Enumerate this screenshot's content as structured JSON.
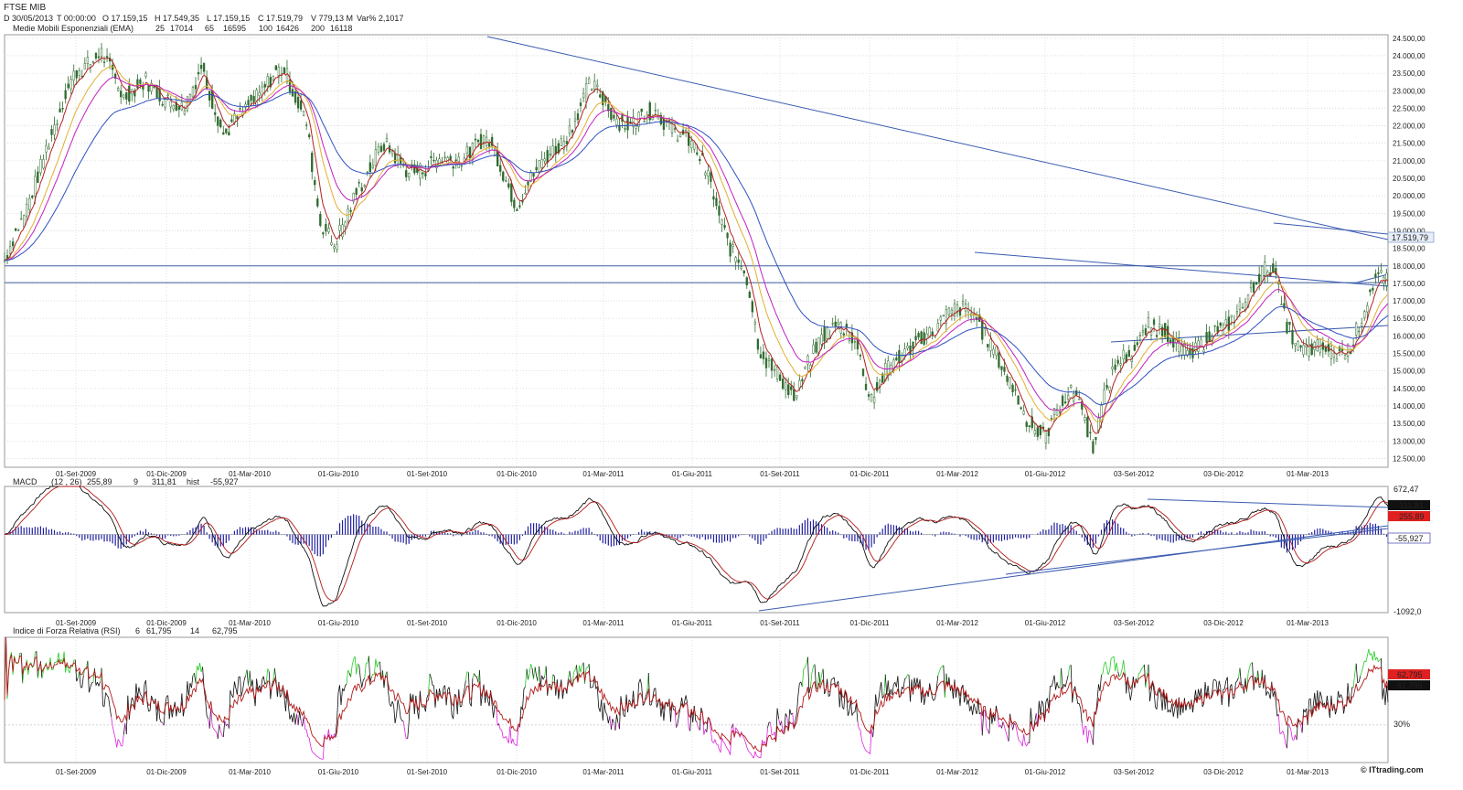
{
  "title": "FTSE MIB",
  "quote": {
    "d": "D 30/05/2013",
    "t": "T 00:00:00",
    "o": "O 17.159,15",
    "h": "H 17.549,35",
    "l": "L 17.159,15",
    "c": "C 17.519,79",
    "v": "V 779,13 M",
    "var": "Var% 2,1017"
  },
  "ema_legend": {
    "label": "Medie Mobili Esponenziali (EMA)",
    "items": [
      {
        "period": "25",
        "value": "17014",
        "color": "#b22222"
      },
      {
        "period": "65",
        "value": "16595",
        "color": "#e0b030"
      },
      {
        "period": "100",
        "value": "16426",
        "color": "#c020c0"
      },
      {
        "period": "200",
        "value": "16118",
        "color": "#3050c0"
      }
    ]
  },
  "macd_legend": {
    "label": "MACD",
    "params": "(12 , 26)",
    "macd": "255,89",
    "sig_label": "9",
    "signal": "311,81",
    "hist_label": "hist",
    "hist": "-55,927"
  },
  "rsi_legend": {
    "label": "Indice di Forza Relativa (RSI)",
    "p1": "6",
    "v1": "61,795",
    "p2": "14",
    "v2": "62,795"
  },
  "x_labels": [
    "01-Set-2009",
    "01-Dic-2009",
    "01-Mar-2010",
    "01-Giu-2010",
    "01-Set-2010",
    "01-Dic-2010",
    "01-Mar-2011",
    "01-Giu-2011",
    "01-Set-2011",
    "01-Dic-2011",
    "01-Mar-2012",
    "01-Giu-2012",
    "03-Set-2012",
    "03-Dic-2012",
    "01-Mar-2013"
  ],
  "price_ticks": [
    "24.500,00",
    "24.000,00",
    "23.500,00",
    "23.000,00",
    "22.500,00",
    "22.000,00",
    "21.500,00",
    "21.000,00",
    "20.500,00",
    "20.000,00",
    "19.500,00",
    "19.000,00",
    "18.500,00",
    "18.000,00",
    "17.500,00",
    "17.000,00",
    "16.500,00",
    "16.000,00",
    "15.500,00",
    "15.000,00",
    "14.500,00",
    "14.000,00",
    "13.500,00",
    "13.000,00",
    "12.500,00"
  ],
  "last_price_label": "17.519,79",
  "macd_ticks": {
    "top": "672,47",
    "bottom": "-1092,0"
  },
  "macd_value_boxes": {
    "signal": "311,81",
    "macd": "255,89",
    "hist": "-55,927"
  },
  "rsi_value_boxes": {
    "rsi14": "62,795",
    "rsi6": "61,795"
  },
  "rsi_level": "30%",
  "watermark": "© ITtrading.com",
  "colors": {
    "candle": "#2f6b2f",
    "ema25": "#b22222",
    "ema65": "#e0b030",
    "ema100": "#c020c0",
    "ema200": "#3050c0",
    "trend": "#3a5bb0",
    "macd_line": "#111111",
    "signal_line": "#b01818",
    "hist": "#2020a0",
    "rsi_line": "#111111",
    "rsi_over": "#22cc22",
    "rsi_under": "#dd22dd",
    "rsi_avg": "#b01818",
    "grid": "#cccccc"
  },
  "chart_data": [
    {
      "type": "candlestick",
      "title": "FTSE MIB",
      "x": [
        "01-Set-2009",
        "01-Dic-2009",
        "01-Mar-2010",
        "01-Giu-2010",
        "01-Set-2010",
        "01-Dic-2010",
        "01-Mar-2011",
        "01-Giu-2011",
        "01-Set-2011",
        "01-Dic-2011",
        "01-Mar-2012",
        "01-Giu-2012",
        "03-Set-2012",
        "03-Dic-2012",
        "01-Mar-2013",
        "30/05/2013"
      ],
      "series": [
        {
          "name": "FTSE MIB",
          "close": [
            23300,
            22600,
            22700,
            19400,
            20700,
            20600,
            22700,
            21300,
            15000,
            15200,
            16600,
            13800,
            16000,
            16000,
            15700,
            17519.79
          ]
        }
      ],
      "ylim": [
        12250,
        24600
      ],
      "horizontal_levels": [
        18000,
        17519.79
      ],
      "ema": {
        "25": 17014,
        "65": 16595,
        "100": 16426,
        "200": 16118
      }
    },
    {
      "type": "line",
      "title": "MACD",
      "series": [
        {
          "name": "MACD (12,26)",
          "last": 255.89
        },
        {
          "name": "9",
          "last": 311.81
        },
        {
          "name": "hist",
          "last": -55.927
        }
      ],
      "ylim": [
        -1092.0,
        672.47
      ]
    },
    {
      "type": "line",
      "title": "Indice di Forza Relativa (RSI)",
      "series": [
        {
          "name": "6",
          "last": 61.795
        },
        {
          "name": "14",
          "last": 62.795
        }
      ],
      "levels": [
        30
      ]
    }
  ]
}
